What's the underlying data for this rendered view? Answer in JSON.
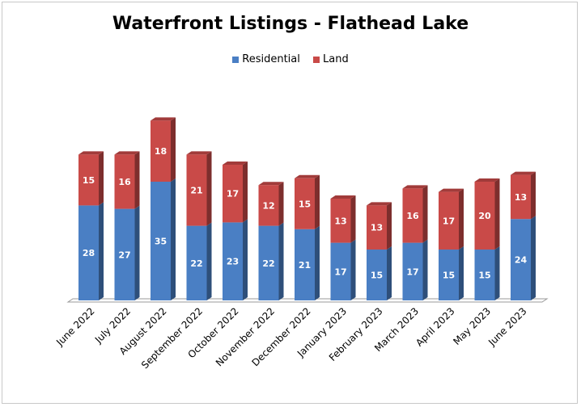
{
  "chart_data": {
    "type": "bar",
    "stacked": true,
    "title": "Waterfront Listings - Flathead Lake",
    "categories": [
      "June 2022",
      "July 2022",
      "August 2022",
      "September 2022",
      "October 2022",
      "November 2022",
      "December 2022",
      "January 2023",
      "February 2023",
      "March 2023",
      "April 2023",
      "May 2023",
      "June 2023"
    ],
    "series": [
      {
        "name": "Residential",
        "color": "#4a7fc4",
        "values": [
          28,
          27,
          35,
          22,
          23,
          22,
          21,
          17,
          15,
          17,
          15,
          15,
          24
        ]
      },
      {
        "name": "Land",
        "color": "#c94a48",
        "values": [
          15,
          16,
          18,
          21,
          17,
          12,
          15,
          13,
          13,
          16,
          17,
          20,
          13
        ]
      }
    ],
    "legend_position": "top",
    "grid": false,
    "ylim": [
      0,
      55
    ]
  }
}
